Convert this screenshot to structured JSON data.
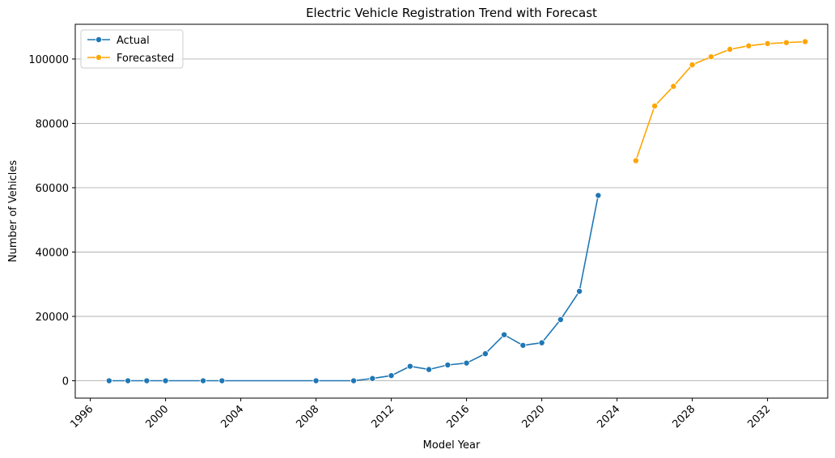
{
  "chart_data": {
    "type": "line",
    "title": "Electric Vehicle Registration Trend with Forecast",
    "xlabel": "Model Year",
    "ylabel": "Number of Vehicles",
    "xlim": [
      1995.2,
      2035.2
    ],
    "ylim": [
      -5400,
      110800
    ],
    "xticks": [
      1996,
      2000,
      2004,
      2008,
      2012,
      2016,
      2020,
      2024,
      2028,
      2032
    ],
    "yticks": [
      0,
      20000,
      40000,
      60000,
      80000,
      100000
    ],
    "grid": "horizontal",
    "legend_position": "top-left",
    "series": [
      {
        "name": "Actual",
        "color": "#1f77b4",
        "x": [
          1997,
          1998,
          1999,
          2000,
          2002,
          2003,
          2008,
          2010,
          2011,
          2012,
          2013,
          2014,
          2015,
          2016,
          2017,
          2018,
          2019,
          2020,
          2021,
          2022,
          2023
        ],
        "y": [
          0,
          0,
          0,
          0,
          0,
          0,
          0,
          0,
          700,
          1600,
          4500,
          3500,
          4900,
          5500,
          8400,
          14300,
          11000,
          11800,
          19000,
          27800,
          57600
        ]
      },
      {
        "name": "Forecasted",
        "color": "#ffa500",
        "x": [
          2025,
          2026,
          2027,
          2028,
          2029,
          2030,
          2031,
          2032,
          2033,
          2034
        ],
        "y": [
          68400,
          85400,
          91500,
          98200,
          100700,
          103000,
          104100,
          104800,
          105100,
          105400
        ]
      }
    ]
  }
}
